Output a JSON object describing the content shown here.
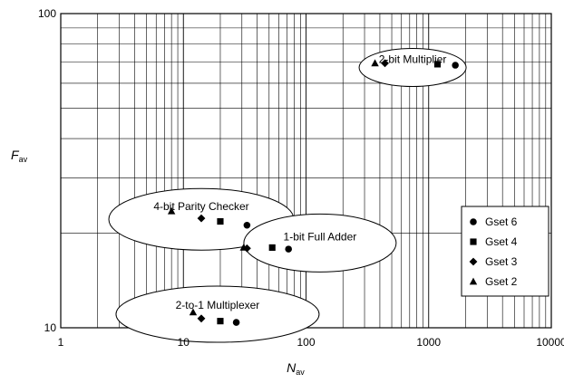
{
  "chart_data": {
    "type": "scatter",
    "xlabel": "N",
    "xlabel_sub": "av",
    "ylabel": "F",
    "ylabel_sub": "av",
    "x_scale": "log",
    "y_scale": "log",
    "xlim": [
      1,
      10000
    ],
    "ylim": [
      10,
      100
    ],
    "x_ticks": [
      "1",
      "10",
      "100",
      "1000",
      "10000"
    ],
    "y_ticks": [
      "10",
      "100"
    ],
    "grid": true,
    "legend_position": "right",
    "series": [
      {
        "name": "Gset 6",
        "marker": "circle",
        "points": [
          [
            1650,
            68.5
          ],
          [
            33,
            21.2
          ],
          [
            72,
            17.8
          ],
          [
            27,
            10.4
          ]
        ]
      },
      {
        "name": "Gset 4",
        "marker": "square",
        "points": [
          [
            1180,
            69.0
          ],
          [
            20,
            21.8
          ],
          [
            53,
            18.0
          ],
          [
            20,
            10.5
          ]
        ]
      },
      {
        "name": "Gset 3",
        "marker": "diamond",
        "points": [
          [
            440,
            69.5
          ],
          [
            14,
            22.3
          ],
          [
            33,
            17.9
          ],
          [
            14,
            10.7
          ]
        ]
      },
      {
        "name": "Gset 2",
        "marker": "triangle",
        "points": [
          [
            365,
            69.5
          ],
          [
            8,
            23.5
          ],
          [
            31,
            18.0
          ],
          [
            12,
            11.2
          ]
        ]
      }
    ],
    "annotations": [
      {
        "text": "2-bit Multiplier",
        "x": 740,
        "y": 71.5
      },
      {
        "text": "4-bit Parity Checker",
        "x": 14,
        "y": 24.3
      },
      {
        "text": "1-bit Full Adder",
        "x": 130,
        "y": 19.5
      },
      {
        "text": "2-to-1 Multiplexer",
        "x": 19,
        "y": 11.8
      }
    ]
  }
}
